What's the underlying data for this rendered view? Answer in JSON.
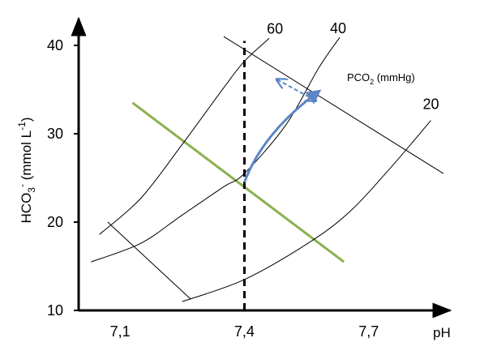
{
  "chart_data": {
    "type": "line",
    "title": "",
    "xlabel": "pH",
    "ylabel": "HCO3- (mmol L-1)",
    "ylabel_parts": {
      "base": "HCO",
      "sub": "3",
      "sup1": "-",
      "rest": " (mmol L",
      "sup2": "-1",
      "close": ")"
    },
    "xlim": [
      7.0,
      7.9
    ],
    "ylim": [
      10,
      41
    ],
    "x_ticks": [
      7.1,
      7.4,
      7.7
    ],
    "x_tick_labels": [
      "7,1",
      "7,4",
      "7,7"
    ],
    "y_ticks": [
      10,
      20,
      30,
      40
    ],
    "y_tick_labels": [
      "10",
      "20",
      "30",
      "40"
    ],
    "grid": false,
    "legend": "none",
    "pco2_label": {
      "base": "PCO",
      "sub": "2",
      "rest": " (mmHg)"
    },
    "series": [
      {
        "name": "60",
        "color": "#000000",
        "points": [
          [
            7.05,
            18.6
          ],
          [
            7.15,
            22.7
          ],
          [
            7.25,
            28.8
          ],
          [
            7.35,
            35.2
          ],
          [
            7.4,
            38.2
          ],
          [
            7.46,
            40.8
          ]
        ]
      },
      {
        "name": "40",
        "color": "#000000",
        "points": [
          [
            7.03,
            15.5
          ],
          [
            7.15,
            17.6
          ],
          [
            7.25,
            20.8
          ],
          [
            7.35,
            24.0
          ],
          [
            7.4,
            25.5
          ],
          [
            7.5,
            31.0
          ],
          [
            7.58,
            37.5
          ],
          [
            7.63,
            40.9
          ]
        ]
      },
      {
        "name": "20",
        "color": "#000000",
        "points": [
          [
            7.25,
            11.0
          ],
          [
            7.4,
            13.5
          ],
          [
            7.55,
            17.5
          ],
          [
            7.65,
            21.0
          ],
          [
            7.75,
            26.0
          ],
          [
            7.85,
            31.5
          ]
        ]
      }
    ],
    "lines": [
      {
        "role": "buffer-line-upper",
        "color": "#000000",
        "points": [
          [
            7.35,
            41.0
          ],
          [
            7.88,
            25.5
          ]
        ]
      },
      {
        "role": "buffer-line-lower",
        "color": "#000000",
        "points": [
          [
            7.07,
            20.0
          ],
          [
            7.27,
            11.3
          ]
        ]
      },
      {
        "role": "green-line",
        "color": "#8BB04D",
        "points": [
          [
            7.13,
            33.5
          ],
          [
            7.64,
            15.5
          ]
        ]
      },
      {
        "role": "ph-7.4-dashed",
        "color": "#000000",
        "points": [
          [
            7.4,
            10.0
          ],
          [
            7.4,
            40.5
          ]
        ]
      }
    ],
    "arrows": [
      {
        "role": "compensation-arrow",
        "color": "#5B86C5",
        "from": [
          7.4,
          24.5
        ],
        "to": [
          7.58,
          34.8
        ],
        "style": "solid"
      },
      {
        "role": "return-arrow",
        "color": "#5B86C5",
        "from": [
          7.57,
          33.8
        ],
        "to": [
          7.48,
          36.1
        ],
        "style": "dashed"
      }
    ],
    "annotations": [
      "60",
      "40",
      "20"
    ]
  }
}
